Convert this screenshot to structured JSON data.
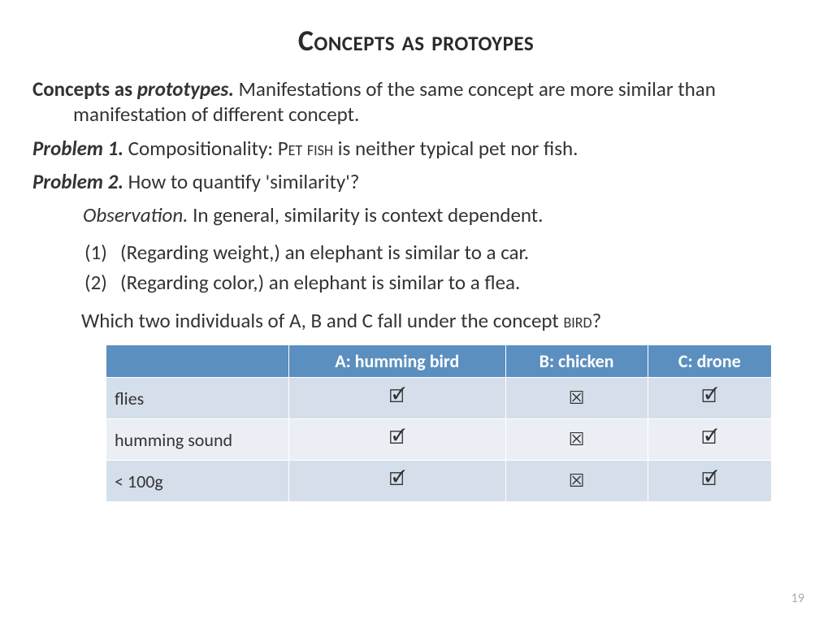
{
  "title": "Concepts as protoypes",
  "para1": {
    "lead_bold": "Concepts as ",
    "lead_ital": "prototypes.",
    "rest": "  Manifestations of the same concept are more similar than manifestation of different concept."
  },
  "problem1": {
    "label": "Problem 1.",
    "pre": " Compositionality: ",
    "sc": "Pet fish",
    "post": " is neither typical pet nor fish."
  },
  "problem2": {
    "label": "Problem 2.",
    "text": " How to quantify 'similarity'?"
  },
  "observation": {
    "label": "Observation.",
    "text": " In general, similarity is context dependent."
  },
  "items": [
    {
      "num": "(1)",
      "text": "(Regarding weight,) an elephant is similar to a car."
    },
    {
      "num": "(2)",
      "text": "(Regarding color,) an elephant is similar to a flea."
    }
  ],
  "question": {
    "pre": "Which two individuals of A, B and C fall under the concept ",
    "sc": "bird",
    "post": "?"
  },
  "table": {
    "headers": [
      "",
      "A: humming bird",
      "B: chicken",
      "C: drone"
    ],
    "rows": [
      {
        "label": "flies",
        "cells": [
          "🗹",
          "☒",
          "🗹"
        ]
      },
      {
        "label": "humming sound",
        "cells": [
          "🗹",
          "☒",
          "🗹"
        ]
      },
      {
        "label": "< 100g",
        "cells": [
          "🗹",
          "☒",
          "🗹"
        ]
      }
    ],
    "col_widths": [
      "225px",
      "225px",
      "185px",
      "185px"
    ],
    "header_bg": "#5b8fbf",
    "row_odd_bg": "#d5dfeb",
    "row_even_bg": "#ebeff5"
  },
  "page_number": "19"
}
